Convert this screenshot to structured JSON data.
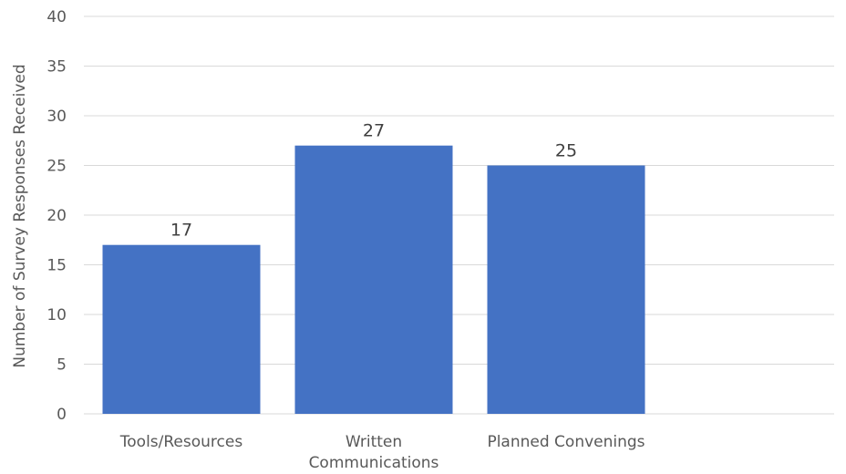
{
  "chart_data": {
    "type": "bar",
    "categories": [
      "Tools/Resources",
      "Written Communications",
      "Planned Convenings"
    ],
    "category_label_lines": [
      [
        "Tools/Resources"
      ],
      [
        "Written",
        "Communications"
      ],
      [
        "Planned Convenings"
      ]
    ],
    "values": [
      17,
      27,
      25
    ],
    "title": "",
    "xlabel": "",
    "ylabel": "Number of Survey Responses Received",
    "ylim": [
      0,
      40
    ],
    "yticks": [
      0,
      5,
      10,
      15,
      20,
      25,
      30,
      35,
      40
    ],
    "grid": true,
    "legend": "none",
    "data_labels": true,
    "bar_color": "#4472C4"
  }
}
